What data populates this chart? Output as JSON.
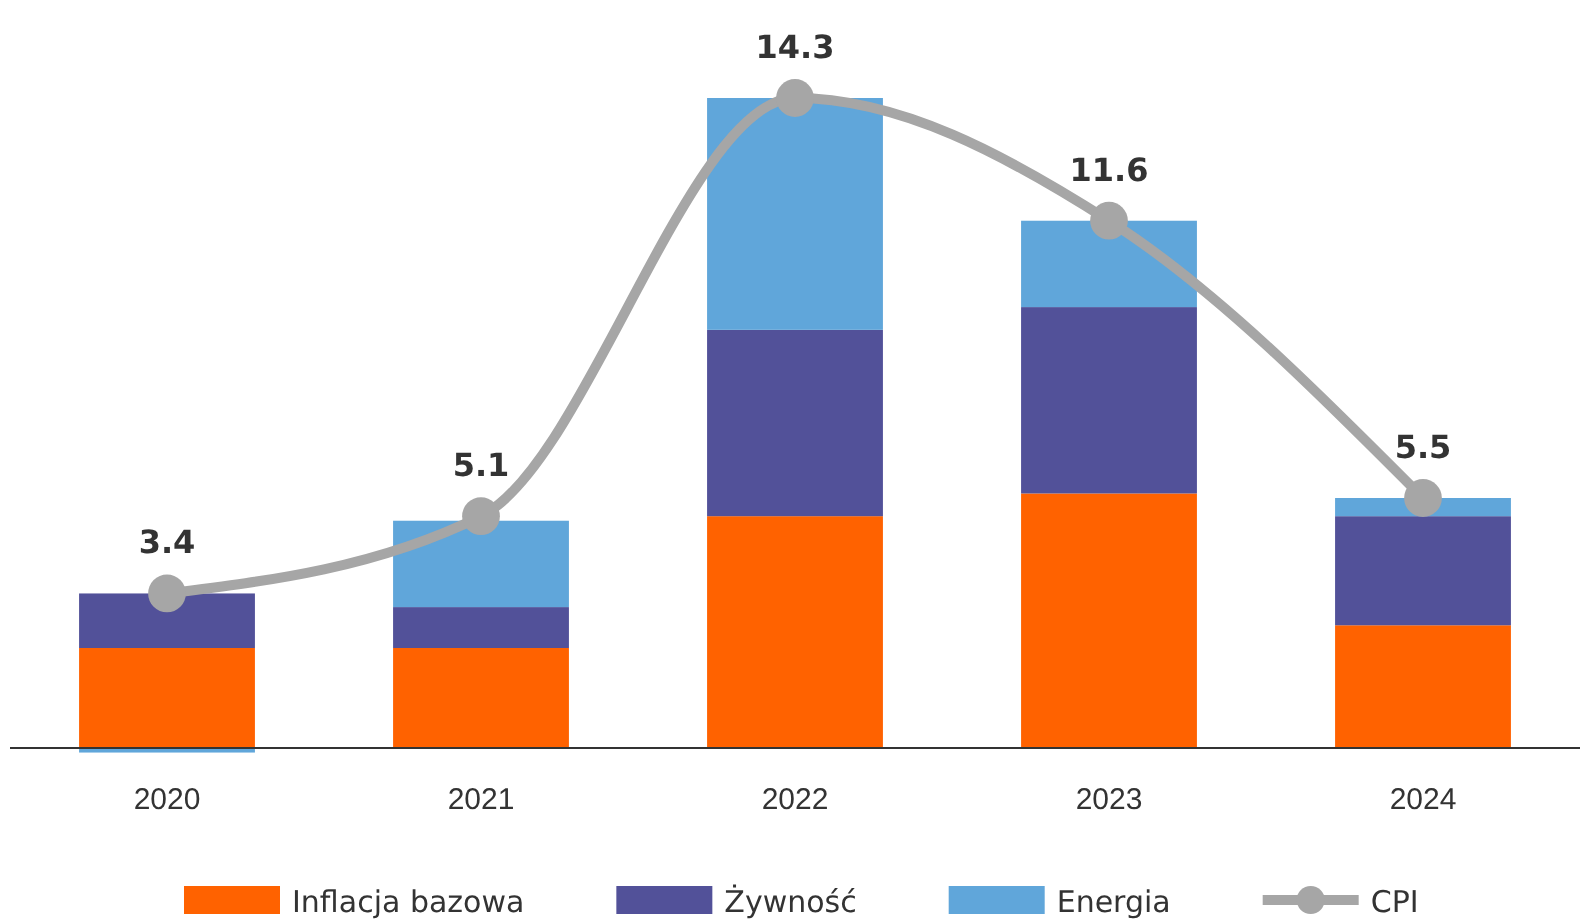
{
  "chart_data": {
    "type": "bar",
    "stacked": true,
    "categories": [
      "2020",
      "2021",
      "2022",
      "2023",
      "2024"
    ],
    "tick_labels": "x",
    "legend": "bottom",
    "series": [
      {
        "name": "Inflacja bazowa",
        "color": "#ff6200",
        "values": [
          2.2,
          2.2,
          5.1,
          5.6,
          2.7
        ]
      },
      {
        "name": "Żywność",
        "color": "#525199",
        "values": [
          1.2,
          0.9,
          4.1,
          4.1,
          2.4
        ]
      },
      {
        "name": "Energia",
        "color": "#60a6da",
        "values": [
          -0.1,
          1.9,
          5.1,
          1.9,
          0.4
        ]
      },
      {
        "name": "CPI",
        "type": "line",
        "color": "#a6a6a6",
        "marker": "circle",
        "values": [
          3.4,
          5.1,
          14.3,
          11.6,
          5.5
        ],
        "value_labels": [
          "3.4",
          "5.1",
          "14.3",
          "11.6",
          "5.5"
        ]
      }
    ]
  }
}
